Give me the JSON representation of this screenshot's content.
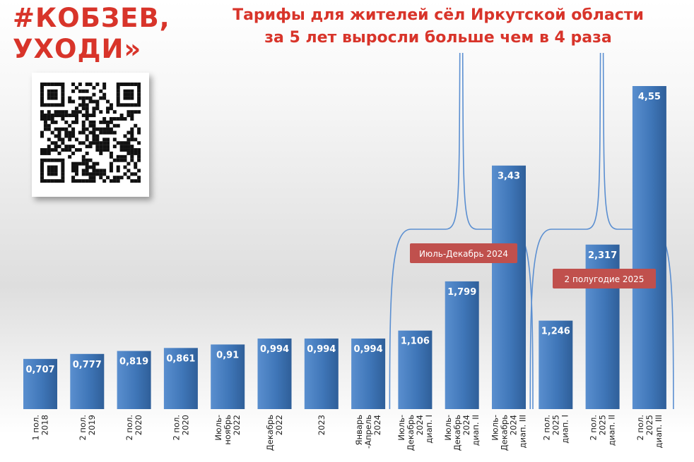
{
  "header": {
    "slogan_line1": "#КОБЗЕВ,",
    "slogan_line2": "УХОДИ»",
    "title_line1": "Тарифы для жителей сёл  Иркутской области",
    "title_line2": "за 5 лет выросли больше чем в 4 раза"
  },
  "colors": {
    "accent": "#d8342a",
    "bar": "#3f76b8",
    "bar_label": "#ffffff",
    "callout": "#c0504d",
    "bracket": "#5b8fd1"
  },
  "icons": {
    "qr": "qr-code-icon"
  },
  "chart_data": {
    "type": "bar",
    "title": "Тарифы для жителей сёл  Иркутской области за 5 лет выросли больше чем в 4 раза",
    "xlabel": "",
    "ylabel": "",
    "ylim": [
      0,
      4.8
    ],
    "grid": false,
    "legend": "none",
    "categories": [
      [
        "1 пол.",
        "2018"
      ],
      [
        "2 пол.",
        "2019"
      ],
      [
        "2 пол.",
        "2020"
      ],
      [
        "2 пол.",
        "2020"
      ],
      [
        "Июль-",
        "ноябрь",
        "2022"
      ],
      [
        "Декабрь",
        "2022"
      ],
      [
        "2023"
      ],
      [
        "Январь",
        "-Апрель",
        "2024"
      ],
      [
        "Июль-",
        "Декабрь",
        "2024",
        "диап. I"
      ],
      [
        "Июль-",
        "Декабрь",
        "2024",
        "диап. II"
      ],
      [
        "Июль-",
        "Декабрь",
        "2024",
        "диап. III"
      ],
      [
        "2 пол.",
        "2025",
        "диап. I"
      ],
      [
        "2 пол.",
        "2025",
        "диап. II"
      ],
      [
        "2 пол.",
        "2025",
        "диап. III"
      ]
    ],
    "values": [
      0.707,
      0.777,
      0.819,
      0.861,
      0.91,
      0.994,
      0.994,
      0.994,
      1.106,
      1.799,
      3.43,
      1.246,
      2.317,
      4.55
    ],
    "value_labels": [
      "0,707",
      "0,777",
      "0,819",
      "0,861",
      "0,91",
      "0,994",
      "0,994",
      "0,994",
      "1,106",
      "1,799",
      "3,43",
      "1,246",
      "2,317",
      "4,55"
    ],
    "annotations": [
      {
        "text": "Июль-Декабрь 2024",
        "bars": [
          8,
          10
        ]
      },
      {
        "text": "2 полугодие 2025",
        "bars": [
          11,
          13
        ]
      }
    ]
  }
}
